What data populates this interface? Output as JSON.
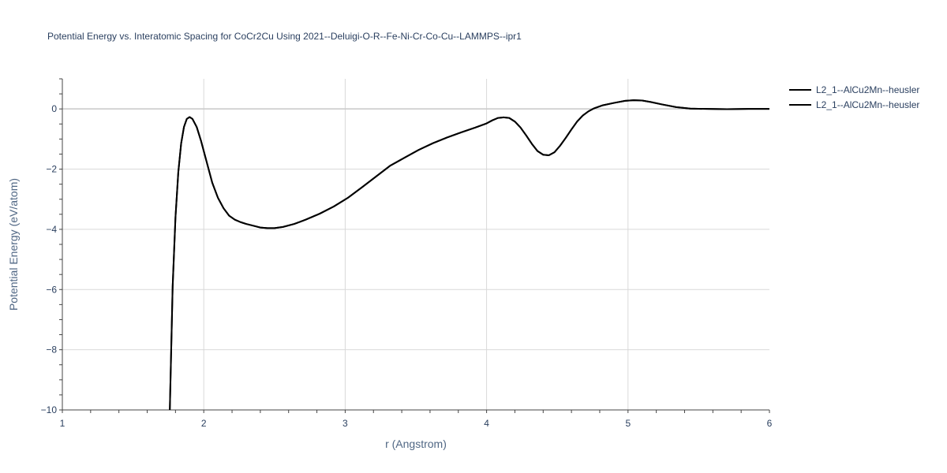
{
  "chart_data": {
    "type": "line",
    "title": "Potential Energy vs. Interatomic Spacing for CoCr2Cu Using 2021--Deluigi-O-R--Fe-Ni-Cr-Co-Cu--LAMMPS--ipr1",
    "xlabel": "r (Angstrom)",
    "ylabel": "Potential Energy (eV/atom)",
    "xlim": [
      1,
      6
    ],
    "ylim": [
      -10,
      1
    ],
    "x_ticks": [
      1,
      2,
      3,
      4,
      5,
      6
    ],
    "x_tick_labels": [
      "1",
      "2",
      "3",
      "4",
      "5",
      "6"
    ],
    "y_ticks": [
      0,
      -2,
      -4,
      -6,
      -8,
      -10
    ],
    "y_tick_labels": [
      "0",
      "−2",
      "−4",
      "−6",
      "−8",
      "−10"
    ],
    "grid": true,
    "legend_position": "top-right",
    "series_color": "#000000",
    "series": [
      {
        "name": "L2_1--AlCu2Mn--heusler",
        "x": [
          1.76,
          1.78,
          1.8,
          1.82,
          1.84,
          1.86,
          1.88,
          1.9,
          1.92,
          1.95,
          1.98,
          2.02,
          2.06,
          2.1,
          2.14,
          2.18,
          2.22,
          2.26,
          2.3,
          2.35,
          2.4,
          2.45,
          2.5,
          2.56,
          2.64,
          2.72,
          2.82,
          2.92,
          3.02,
          3.12,
          3.22,
          3.32,
          3.42,
          3.52,
          3.62,
          3.72,
          3.82,
          3.92,
          4.0,
          4.04,
          4.08,
          4.12,
          4.16,
          4.2,
          4.24,
          4.28,
          4.32,
          4.36,
          4.4,
          4.44,
          4.48,
          4.52,
          4.56,
          4.6,
          4.64,
          4.68,
          4.72,
          4.76,
          4.82,
          4.9,
          4.98,
          5.04,
          5.1,
          5.16,
          5.24,
          5.34,
          5.44,
          5.56,
          5.7,
          5.85,
          6.0
        ],
        "y": [
          -10.0,
          -5.9,
          -3.6,
          -2.1,
          -1.15,
          -0.6,
          -0.33,
          -0.27,
          -0.33,
          -0.6,
          -1.05,
          -1.75,
          -2.45,
          -2.95,
          -3.3,
          -3.55,
          -3.68,
          -3.76,
          -3.82,
          -3.88,
          -3.94,
          -3.96,
          -3.96,
          -3.92,
          -3.82,
          -3.68,
          -3.48,
          -3.24,
          -2.95,
          -2.6,
          -2.24,
          -1.88,
          -1.62,
          -1.36,
          -1.14,
          -0.95,
          -0.78,
          -0.62,
          -0.48,
          -0.38,
          -0.3,
          -0.28,
          -0.3,
          -0.42,
          -0.62,
          -0.88,
          -1.16,
          -1.4,
          -1.52,
          -1.54,
          -1.44,
          -1.22,
          -0.96,
          -0.68,
          -0.42,
          -0.22,
          -0.08,
          0.02,
          0.12,
          0.2,
          0.27,
          0.29,
          0.28,
          0.23,
          0.15,
          0.06,
          0.01,
          0.0,
          -0.01,
          0.0,
          0.0
        ]
      },
      {
        "name": "L2_1--AlCu2Mn--heusler",
        "x": [
          1.76,
          1.78,
          1.8,
          1.82,
          1.84,
          1.86,
          1.88,
          1.9,
          1.92,
          1.95,
          1.98,
          2.02,
          2.06,
          2.1,
          2.14,
          2.18,
          2.22,
          2.26,
          2.3,
          2.35,
          2.4,
          2.45,
          2.5,
          2.56,
          2.64,
          2.72,
          2.82,
          2.92,
          3.02,
          3.12,
          3.22,
          3.32,
          3.42,
          3.52,
          3.62,
          3.72,
          3.82,
          3.92,
          4.0,
          4.04,
          4.08,
          4.12,
          4.16,
          4.2,
          4.24,
          4.28,
          4.32,
          4.36,
          4.4,
          4.44,
          4.48,
          4.52,
          4.56,
          4.6,
          4.64,
          4.68,
          4.72,
          4.76,
          4.82,
          4.9,
          4.98,
          5.04,
          5.1,
          5.16,
          5.24,
          5.34,
          5.44,
          5.56,
          5.7,
          5.85,
          6.0
        ],
        "y": [
          -10.0,
          -5.9,
          -3.6,
          -2.1,
          -1.15,
          -0.6,
          -0.33,
          -0.27,
          -0.33,
          -0.6,
          -1.05,
          -1.75,
          -2.45,
          -2.95,
          -3.3,
          -3.55,
          -3.68,
          -3.76,
          -3.82,
          -3.88,
          -3.94,
          -3.96,
          -3.96,
          -3.92,
          -3.82,
          -3.68,
          -3.48,
          -3.24,
          -2.95,
          -2.6,
          -2.24,
          -1.88,
          -1.62,
          -1.36,
          -1.14,
          -0.95,
          -0.78,
          -0.62,
          -0.48,
          -0.38,
          -0.3,
          -0.28,
          -0.3,
          -0.42,
          -0.62,
          -0.88,
          -1.16,
          -1.4,
          -1.52,
          -1.54,
          -1.44,
          -1.22,
          -0.96,
          -0.68,
          -0.42,
          -0.22,
          -0.08,
          0.02,
          0.12,
          0.2,
          0.27,
          0.29,
          0.28,
          0.23,
          0.15,
          0.06,
          0.01,
          0.0,
          -0.01,
          0.0,
          0.0
        ]
      }
    ]
  }
}
